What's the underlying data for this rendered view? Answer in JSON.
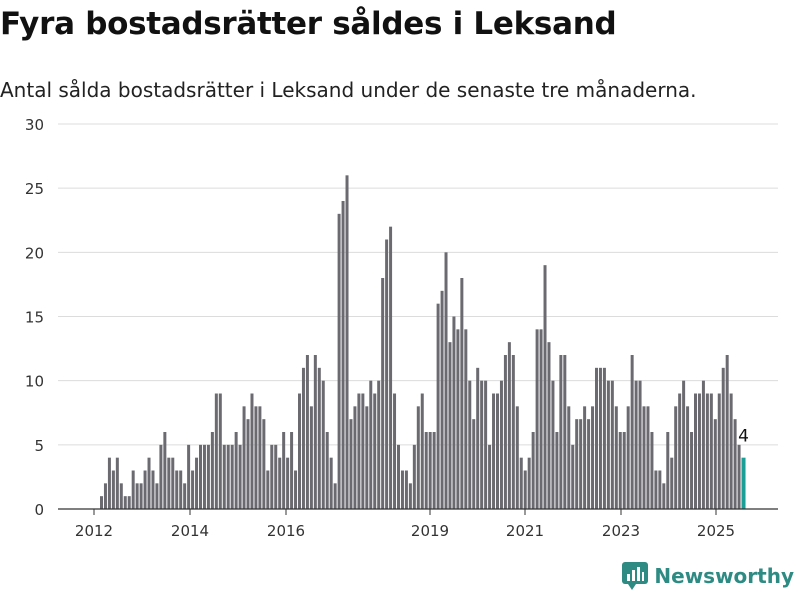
{
  "chart_data": {
    "type": "bar",
    "title": "Fyra bostadsrätter såldes i Leksand",
    "subtitle": "Antal sålda bostadsrätter i Leksand under de senaste tre månaderna.",
    "x_tick_labels": [
      "2012",
      "2014",
      "2016",
      "2019",
      "2021",
      "2023",
      "2025"
    ],
    "y_tick_labels": [
      "0",
      "5",
      "10",
      "15",
      "20",
      "25",
      "30"
    ],
    "ylim": [
      0,
      30
    ],
    "grid": true,
    "values": [
      1,
      2,
      4,
      3,
      4,
      2,
      1,
      1,
      3,
      2,
      2,
      3,
      4,
      3,
      2,
      5,
      6,
      4,
      4,
      3,
      3,
      2,
      5,
      3,
      4,
      5,
      5,
      5,
      6,
      9,
      9,
      5,
      5,
      5,
      6,
      5,
      8,
      7,
      9,
      8,
      8,
      7,
      3,
      5,
      5,
      4,
      6,
      4,
      6,
      3,
      9,
      11,
      12,
      8,
      12,
      11,
      10,
      6,
      4,
      2,
      23,
      24,
      26,
      7,
      8,
      9,
      9,
      8,
      10,
      9,
      10,
      18,
      21,
      22,
      9,
      5,
      3,
      3,
      2,
      5,
      8,
      9,
      6,
      6,
      6,
      16,
      17,
      20,
      13,
      15,
      14,
      18,
      14,
      10,
      7,
      11,
      10,
      10,
      5,
      9,
      9,
      10,
      12,
      13,
      12,
      8,
      4,
      3,
      4,
      6,
      14,
      14,
      19,
      13,
      10,
      6,
      12,
      12,
      8,
      5,
      7,
      7,
      8,
      7,
      8,
      11,
      11,
      11,
      10,
      10,
      8,
      6,
      6,
      8,
      12,
      10,
      10,
      8,
      8,
      6,
      3,
      3,
      2,
      6,
      4,
      8,
      9,
      10,
      8,
      6,
      9,
      9,
      10,
      9,
      9,
      7,
      9,
      11,
      12,
      9,
      7,
      5,
      4
    ],
    "highlight_label": "4",
    "bar_color": "#6b6a70",
    "highlight_color": "#1a9e96"
  },
  "brand": {
    "name": "Newsworthy",
    "color": "#2e8b83",
    "icon": "bar-chart-logo-icon"
  }
}
